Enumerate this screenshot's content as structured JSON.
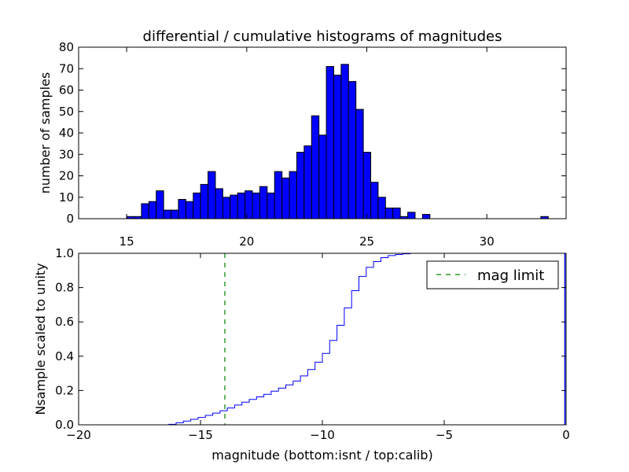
{
  "chart_data": [
    {
      "type": "bar",
      "title": "differential / cumulative histograms of magnitudes",
      "xlabel": "",
      "ylabel": "number of samples",
      "xlim": [
        13.0,
        33.3
      ],
      "ylim": [
        0,
        80
      ],
      "x_ticks": [
        15,
        20,
        25,
        30
      ],
      "y_ticks": [
        0,
        10,
        20,
        30,
        40,
        50,
        60,
        70,
        80
      ],
      "bin_start": 15.0,
      "bin_width": 0.308,
      "bar_color": "#0000ff",
      "values": [
        1,
        1,
        7,
        8,
        13,
        4,
        4,
        9,
        8,
        12,
        16,
        22,
        14,
        10,
        11,
        12,
        13,
        12,
        15,
        12,
        22,
        19,
        22,
        31,
        34,
        48,
        39,
        71,
        67,
        72,
        64,
        51,
        31,
        17,
        10,
        5,
        5,
        1,
        3,
        0,
        2,
        0,
        0,
        0,
        0,
        0,
        0,
        0,
        0,
        0,
        0,
        0,
        0,
        0,
        0,
        0,
        1
      ]
    },
    {
      "type": "line",
      "xlabel": "magnitude (bottom:isnt / top:calib)",
      "ylabel": "Nsample scaled to unity",
      "xlim": [
        -20,
        0
      ],
      "ylim": [
        0.0,
        1.0
      ],
      "x_ticks": [
        -20,
        -15,
        -10,
        -5,
        0
      ],
      "x_tick_labels": [
        "−20",
        "−15",
        "−10",
        "−5",
        "0"
      ],
      "y_ticks": [
        0.0,
        0.2,
        0.4,
        0.6,
        0.8,
        1.0
      ],
      "y_tick_labels": [
        "0.0",
        "0.2",
        "0.4",
        "0.6",
        "0.8",
        "1.0"
      ],
      "step_color": "#0000ff",
      "step_x": [
        -20,
        -16.3,
        -16.0,
        -15.7,
        -15.4,
        -15.1,
        -14.8,
        -14.5,
        -14.2,
        -13.9,
        -13.6,
        -13.3,
        -13.0,
        -12.7,
        -12.4,
        -12.1,
        -11.8,
        -11.5,
        -11.2,
        -10.9,
        -10.6,
        -10.3,
        -10.0,
        -9.7,
        -9.4,
        -9.1,
        -8.8,
        -8.5,
        -8.2,
        -7.9,
        -7.6,
        -7.3,
        -7.0,
        -6.7,
        -6.4,
        -0.3,
        -0.05
      ],
      "step_y": [
        0.0,
        0.003,
        0.012,
        0.022,
        0.032,
        0.043,
        0.055,
        0.068,
        0.082,
        0.098,
        0.115,
        0.132,
        0.148,
        0.163,
        0.178,
        0.196,
        0.214,
        0.233,
        0.255,
        0.285,
        0.322,
        0.365,
        0.416,
        0.492,
        0.58,
        0.682,
        0.782,
        0.865,
        0.918,
        0.952,
        0.975,
        0.987,
        0.993,
        0.997,
        1.0,
        1.0,
        1.0
      ],
      "mag_limit": -14.0,
      "legend": {
        "label": "mag limit",
        "placement": "top-right",
        "line_color": "#008000"
      }
    }
  ]
}
